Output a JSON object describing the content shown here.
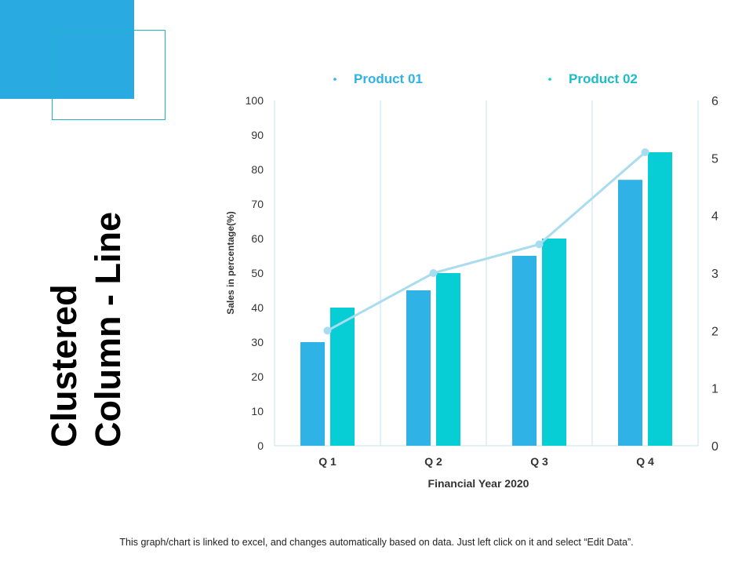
{
  "slide": {
    "title_line1": "Clustered",
    "title_line2": "Column - Line",
    "footer": "This graph/chart is linked to excel, and changes automatically based on data. Just left click on it and select “Edit Data”."
  },
  "colors": {
    "block": "#29abe2",
    "product01": "#2fb2e6",
    "product02": "#07cdd4",
    "line": "#a9dcef",
    "grid": "#c5e3ef"
  },
  "chart_data": {
    "type": "bar",
    "categories": [
      "Q 1",
      "Q 2",
      "Q 3",
      "Q 4"
    ],
    "series": [
      {
        "name": "Product 01",
        "values": [
          30,
          45,
          55,
          77
        ],
        "axis": "left",
        "kind": "bar"
      },
      {
        "name": "Product 02",
        "values": [
          40,
          50,
          60,
          85
        ],
        "axis": "left",
        "kind": "bar"
      },
      {
        "name": "",
        "values": [
          2,
          3,
          3.5,
          5.1
        ],
        "axis": "right",
        "kind": "line"
      }
    ],
    "xlabel": "Financial Year 2020",
    "ylabel": "Sales in percentage(%)",
    "ylim": [
      0,
      100
    ],
    "y_ticks": [
      "0",
      "10",
      "20",
      "30",
      "40",
      "50",
      "60",
      "70",
      "80",
      "90",
      "100"
    ],
    "y2lim": [
      0,
      6
    ],
    "y2_ticks": [
      "0",
      "1",
      "2",
      "3",
      "4",
      "5",
      "6"
    ],
    "legend_position": "top",
    "grid": "vertical category separators"
  }
}
